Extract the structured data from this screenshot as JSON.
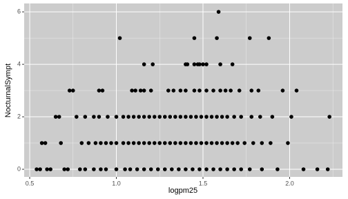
{
  "chart_data": {
    "type": "scatter",
    "x_label": "logpm25",
    "y_label": "NocturnalSympt",
    "xlim": [
      0.468,
      2.305
    ],
    "ylim": [
      -0.29,
      6.32
    ],
    "xticks": [
      0.5,
      {
        "value": 1.0,
        "label": "1.0"
      },
      1.5,
      {
        "value": 2.0,
        "label": "2.0"
      }
    ],
    "yticks": [
      0,
      2,
      4,
      6
    ],
    "xminor": [
      0.75,
      1.25,
      1.75,
      2.25
    ],
    "yminor": [
      1,
      3,
      5
    ],
    "grid": true,
    "background": "#cccccc",
    "color": "#000000",
    "x": [
      1.59,
      1.02,
      1.45,
      1.58,
      1.77,
      1.88,
      1.16,
      1.21,
      1.4,
      1.41,
      1.45,
      1.47,
      1.48,
      1.5,
      1.52,
      1.6,
      1.67,
      0.73,
      0.75,
      0.9,
      0.92,
      1.09,
      1.11,
      1.14,
      1.16,
      1.2,
      1.3,
      1.33,
      1.37,
      1.4,
      1.45,
      1.48,
      1.52,
      1.56,
      1.6,
      1.63,
      1.66,
      1.71,
      1.78,
      1.82,
      1.96,
      2.04,
      0.65,
      0.67,
      0.77,
      0.82,
      0.87,
      0.9,
      0.95,
      1.0,
      1.04,
      1.07,
      1.1,
      1.13,
      1.16,
      1.19,
      1.22,
      1.25,
      1.28,
      1.31,
      1.34,
      1.37,
      1.4,
      1.43,
      1.46,
      1.49,
      1.52,
      1.55,
      1.58,
      1.61,
      1.64,
      1.68,
      1.72,
      1.78,
      1.83,
      1.9,
      2.01,
      2.23,
      0.57,
      0.59,
      0.68,
      0.8,
      0.84,
      0.88,
      0.91,
      0.94,
      0.97,
      1.0,
      1.04,
      1.07,
      1.1,
      1.13,
      1.16,
      1.19,
      1.22,
      1.25,
      1.28,
      1.31,
      1.34,
      1.37,
      1.4,
      1.43,
      1.46,
      1.49,
      1.52,
      1.55,
      1.58,
      1.61,
      1.64,
      1.67,
      1.7,
      1.74,
      1.79,
      1.84,
      1.89,
      1.99,
      0.54,
      0.56,
      0.6,
      0.62,
      0.7,
      0.72,
      0.79,
      0.82,
      0.87,
      0.91,
      0.94,
      1.0,
      1.05,
      1.08,
      1.12,
      1.16,
      1.2,
      1.24,
      1.28,
      1.32,
      1.36,
      1.4,
      1.44,
      1.48,
      1.52,
      1.56,
      1.6,
      1.64,
      1.68,
      1.72,
      1.77,
      1.84,
      1.93,
      2.08,
      2.16,
      2.22
    ],
    "values": [
      6,
      5,
      5,
      5,
      5,
      5,
      4,
      4,
      4,
      4,
      4,
      4,
      4,
      4,
      4,
      4,
      4,
      3,
      3,
      3,
      3,
      3,
      3,
      3,
      3,
      3,
      3,
      3,
      3,
      3,
      3,
      3,
      3,
      3,
      3,
      3,
      3,
      3,
      3,
      3,
      3,
      3,
      2,
      2,
      2,
      2,
      2,
      2,
      2,
      2,
      2,
      2,
      2,
      2,
      2,
      2,
      2,
      2,
      2,
      2,
      2,
      2,
      2,
      2,
      2,
      2,
      2,
      2,
      2,
      2,
      2,
      2,
      2,
      2,
      2,
      2,
      2,
      2,
      1,
      1,
      1,
      1,
      1,
      1,
      1,
      1,
      1,
      1,
      1,
      1,
      1,
      1,
      1,
      1,
      1,
      1,
      1,
      1,
      1,
      1,
      1,
      1,
      1,
      1,
      1,
      1,
      1,
      1,
      1,
      1,
      1,
      1,
      1,
      1,
      1,
      1,
      0,
      0,
      0,
      0,
      0,
      0,
      0,
      0,
      0,
      0,
      0,
      0,
      0,
      0,
      0,
      0,
      0,
      0,
      0,
      0,
      0,
      0,
      0,
      0,
      0,
      0,
      0,
      0,
      0,
      0,
      0,
      0,
      0,
      0,
      0,
      0
    ]
  }
}
